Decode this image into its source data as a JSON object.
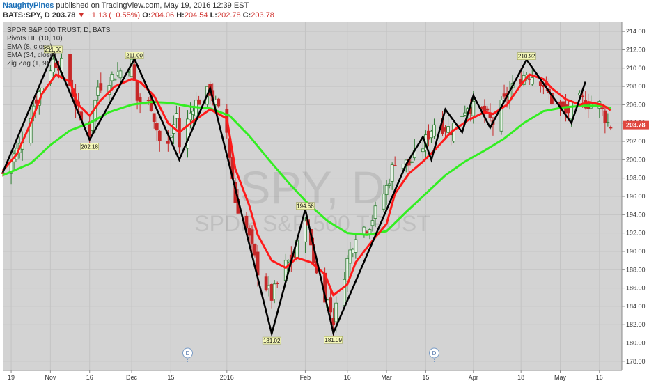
{
  "header": {
    "author": "NaughtyPines",
    "published": "published on TradingView.com, May 19, 2016 12:39 EST",
    "symbol": "BATS:SPY, D",
    "last": "203.78",
    "change": "−1.13 (−0.55%)",
    "o_label": "O:",
    "o": "204.06",
    "h_label": "H:",
    "h": "204.54",
    "l_label": "L:",
    "l": "202.78",
    "c_label": "C:",
    "c": "203.78"
  },
  "legend": [
    "SPDR S&P 500 TRUST, D, BATS",
    "Pivots HL (10, 10)",
    "EMA (8, close)",
    "EMA (34, close)",
    "Zig Zag (1, 9)"
  ],
  "watermark": {
    "line1": "SPY, D",
    "line2": "SPDR S&P 500 TRUST"
  },
  "colors": {
    "plot_bg": "#d3d3d3",
    "grid": "#c4c4c4",
    "up": "#2e7d32",
    "down": "#c62828",
    "ema_fast": "#ff1a1a",
    "ema_slow": "#33ee22",
    "zigzag": "#000000",
    "price_tag": "#e0473f",
    "pivot_label_bg": "#f4f7b8"
  },
  "events": [
    {
      "date": "2015-12-21",
      "label": "D"
    },
    {
      "date": "2016-03-18",
      "label": "D"
    }
  ],
  "chart_data": {
    "type": "candlestick",
    "title": "SPDR S&P 500 TRUST, D, BATS",
    "xlabel": "",
    "ylabel": "",
    "x_range": [
      "2015-10-16",
      "2016-05-24"
    ],
    "ylim": [
      177,
      215
    ],
    "y_ticks": [
      178,
      180,
      182,
      184,
      186,
      188,
      190,
      192,
      194,
      196,
      198,
      200,
      202,
      204,
      206,
      208,
      210,
      212,
      214
    ],
    "y_tick_labels": [
      "178.00",
      "180.00",
      "182.00",
      "184.00",
      "186.00",
      "188.00",
      "190.00",
      "192.00",
      "194.00",
      "196.00",
      "198.00",
      "200.00",
      "202.00",
      "204.00",
      "206.00",
      "208.00",
      "210.00",
      "212.00",
      "214.00"
    ],
    "x_ticks": [
      {
        "date": "2015-10-19",
        "label": "19"
      },
      {
        "date": "2015-11-02",
        "label": "Nov"
      },
      {
        "date": "2015-11-16",
        "label": "16"
      },
      {
        "date": "2015-12-01",
        "label": "Dec"
      },
      {
        "date": "2015-12-15",
        "label": "15"
      },
      {
        "date": "2016-01-04",
        "label": "2016"
      },
      {
        "date": "2016-02-01",
        "label": "Feb"
      },
      {
        "date": "2016-02-16",
        "label": "16"
      },
      {
        "date": "2016-03-01",
        "label": "Mar"
      },
      {
        "date": "2016-03-15",
        "label": "15"
      },
      {
        "date": "2016-04-01",
        "label": "Apr"
      },
      {
        "date": "2016-04-18",
        "label": "18"
      },
      {
        "date": "2016-05-02",
        "label": "May"
      },
      {
        "date": "2016-05-16",
        "label": "16"
      }
    ],
    "last_price": {
      "value": 203.78,
      "label": "203.78"
    },
    "zigzag": [
      {
        "date": "2015-10-16",
        "value": 198.6
      },
      {
        "date": "2015-11-03",
        "value": 211.66
      },
      {
        "date": "2015-11-16",
        "value": 202.18
      },
      {
        "date": "2015-12-02",
        "value": 211.0
      },
      {
        "date": "2015-12-18",
        "value": 200.0
      },
      {
        "date": "2015-12-29",
        "value": 207.8
      },
      {
        "date": "2016-01-20",
        "value": 181.02
      },
      {
        "date": "2016-02-01",
        "value": 194.58
      },
      {
        "date": "2016-02-11",
        "value": 181.09
      },
      {
        "date": "2016-03-08",
        "value": 199.5
      },
      {
        "date": "2016-03-14",
        "value": 202.5
      },
      {
        "date": "2016-03-17",
        "value": 200.0
      },
      {
        "date": "2016-03-22",
        "value": 205.5
      },
      {
        "date": "2016-03-28",
        "value": 203.0
      },
      {
        "date": "2016-04-01",
        "value": 207.0
      },
      {
        "date": "2016-04-07",
        "value": 203.5
      },
      {
        "date": "2016-04-20",
        "value": 210.92
      },
      {
        "date": "2016-05-06",
        "value": 204.0
      },
      {
        "date": "2016-05-11",
        "value": 208.5
      }
    ],
    "pivot_labels": [
      {
        "date": "2015-11-03",
        "value": 211.66,
        "label": "211.66",
        "position": "above"
      },
      {
        "date": "2015-11-16",
        "value": 202.18,
        "label": "202.18",
        "position": "below"
      },
      {
        "date": "2015-12-02",
        "value": 211.0,
        "label": "211.00",
        "position": "above"
      },
      {
        "date": "2016-01-20",
        "value": 181.02,
        "label": "181.02",
        "position": "below"
      },
      {
        "date": "2016-02-01",
        "value": 194.58,
        "label": "194.58",
        "position": "above"
      },
      {
        "date": "2016-02-11",
        "value": 181.09,
        "label": "181.09",
        "position": "below"
      },
      {
        "date": "2016-04-20",
        "value": 210.92,
        "label": "210.92",
        "position": "above"
      }
    ],
    "ema_fast_series": {
      "name": "EMA (8, close)",
      "points": [
        [
          "2015-10-16",
          198.8
        ],
        [
          "2015-10-21",
          200.6
        ],
        [
          "2015-10-26",
          204.0
        ],
        [
          "2015-10-30",
          207.2
        ],
        [
          "2015-11-04",
          209.3
        ],
        [
          "2015-11-09",
          208.5
        ],
        [
          "2015-11-12",
          206.0
        ],
        [
          "2015-11-16",
          204.8
        ],
        [
          "2015-11-20",
          206.5
        ],
        [
          "2015-11-25",
          208.0
        ],
        [
          "2015-12-01",
          208.8
        ],
        [
          "2015-12-04",
          208.5
        ],
        [
          "2015-12-09",
          207.0
        ],
        [
          "2015-12-14",
          204.0
        ],
        [
          "2015-12-18",
          203.0
        ],
        [
          "2015-12-23",
          204.2
        ],
        [
          "2015-12-29",
          205.5
        ],
        [
          "2016-01-04",
          204.5
        ],
        [
          "2016-01-07",
          199.0
        ],
        [
          "2016-01-12",
          195.0
        ],
        [
          "2016-01-15",
          191.8
        ],
        [
          "2016-01-20",
          189.0
        ],
        [
          "2016-01-25",
          188.2
        ],
        [
          "2016-01-29",
          189.3
        ],
        [
          "2016-02-03",
          188.8
        ],
        [
          "2016-02-08",
          187.5
        ],
        [
          "2016-02-11",
          185.2
        ],
        [
          "2016-02-16",
          186.4
        ],
        [
          "2016-02-19",
          188.8
        ],
        [
          "2016-02-24",
          190.8
        ],
        [
          "2016-03-01",
          193.0
        ],
        [
          "2016-03-04",
          196.3
        ],
        [
          "2016-03-09",
          198.5
        ],
        [
          "2016-03-14",
          199.8
        ],
        [
          "2016-03-18",
          201.0
        ],
        [
          "2016-03-24",
          203.0
        ],
        [
          "2016-03-30",
          204.3
        ],
        [
          "2016-04-05",
          205.2
        ],
        [
          "2016-04-08",
          205.0
        ],
        [
          "2016-04-13",
          206.0
        ],
        [
          "2016-04-18",
          208.2
        ],
        [
          "2016-04-21",
          209.3
        ],
        [
          "2016-04-26",
          208.8
        ],
        [
          "2016-04-29",
          207.8
        ],
        [
          "2016-05-04",
          206.6
        ],
        [
          "2016-05-09",
          206.0
        ],
        [
          "2016-05-12",
          206.3
        ],
        [
          "2016-05-17",
          206.0
        ],
        [
          "2016-05-20",
          205.4
        ]
      ]
    },
    "ema_slow_series": {
      "name": "EMA (34, close)",
      "points": [
        [
          "2015-10-16",
          198.3
        ],
        [
          "2015-10-26",
          199.6
        ],
        [
          "2015-11-02",
          201.6
        ],
        [
          "2015-11-09",
          203.2
        ],
        [
          "2015-11-16",
          204.0
        ],
        [
          "2015-11-23",
          205.2
        ],
        [
          "2015-12-01",
          206.0
        ],
        [
          "2015-12-08",
          206.3
        ],
        [
          "2015-12-15",
          206.2
        ],
        [
          "2015-12-22",
          205.8
        ],
        [
          "2015-12-29",
          205.6
        ],
        [
          "2016-01-05",
          204.8
        ],
        [
          "2016-01-12",
          202.6
        ],
        [
          "2016-01-19",
          200.0
        ],
        [
          "2016-01-26",
          197.5
        ],
        [
          "2016-02-02",
          195.2
        ],
        [
          "2016-02-09",
          193.3
        ],
        [
          "2016-02-16",
          192.0
        ],
        [
          "2016-02-23",
          191.8
        ],
        [
          "2016-03-01",
          192.2
        ],
        [
          "2016-03-08",
          194.3
        ],
        [
          "2016-03-15",
          196.3
        ],
        [
          "2016-03-22",
          198.3
        ],
        [
          "2016-03-29",
          199.8
        ],
        [
          "2016-04-05",
          201.0
        ],
        [
          "2016-04-12",
          202.3
        ],
        [
          "2016-04-19",
          204.0
        ],
        [
          "2016-04-26",
          205.3
        ],
        [
          "2016-05-03",
          205.7
        ],
        [
          "2016-05-10",
          205.9
        ],
        [
          "2016-05-17",
          205.9
        ],
        [
          "2016-05-20",
          205.6
        ]
      ]
    },
    "ohlc_anchors": [
      [
        "2015-10-16",
        198.5
      ],
      [
        "2015-10-22",
        201.5
      ],
      [
        "2015-10-27",
        206.0
      ],
      [
        "2015-11-03",
        210.8
      ],
      [
        "2015-11-06",
        210.3
      ],
      [
        "2015-11-09",
        208.2
      ],
      [
        "2015-11-13",
        204.2
      ],
      [
        "2015-11-16",
        203.0
      ],
      [
        "2015-11-19",
        208.0
      ],
      [
        "2015-11-25",
        209.3
      ],
      [
        "2015-12-01",
        210.5
      ],
      [
        "2015-12-03",
        206.5
      ],
      [
        "2015-12-08",
        206.0
      ],
      [
        "2015-12-11",
        202.0
      ],
      [
        "2015-12-14",
        201.5
      ],
      [
        "2015-12-17",
        205.0
      ],
      [
        "2015-12-18",
        201.5
      ],
      [
        "2015-12-23",
        206.0
      ],
      [
        "2015-12-29",
        207.5
      ],
      [
        "2016-01-04",
        203.0
      ],
      [
        "2016-01-07",
        195.5
      ],
      [
        "2016-01-11",
        192.5
      ],
      [
        "2016-01-15",
        188.0
      ],
      [
        "2016-01-20",
        185.0
      ],
      [
        "2016-01-25",
        188.5
      ],
      [
        "2016-01-28",
        189.5
      ],
      [
        "2016-02-01",
        194.0
      ],
      [
        "2016-02-05",
        187.5
      ],
      [
        "2016-02-09",
        184.5
      ],
      [
        "2016-02-11",
        182.5
      ],
      [
        "2016-02-16",
        189.0
      ],
      [
        "2016-02-19",
        192.0
      ],
      [
        "2016-02-24",
        193.0
      ],
      [
        "2016-03-01",
        197.0
      ],
      [
        "2016-03-04",
        200.0
      ],
      [
        "2016-03-09",
        199.5
      ],
      [
        "2016-03-14",
        201.5
      ],
      [
        "2016-03-18",
        204.0
      ],
      [
        "2016-03-24",
        203.3
      ],
      [
        "2016-03-30",
        206.0
      ],
      [
        "2016-04-05",
        205.0
      ],
      [
        "2016-04-08",
        204.0
      ],
      [
        "2016-04-13",
        207.0
      ],
      [
        "2016-04-18",
        209.0
      ],
      [
        "2016-04-20",
        209.5
      ],
      [
        "2016-04-25",
        208.8
      ],
      [
        "2016-04-29",
        206.5
      ],
      [
        "2016-05-04",
        205.0
      ],
      [
        "2016-05-09",
        206.5
      ],
      [
        "2016-05-12",
        206.2
      ],
      [
        "2016-05-16",
        206.0
      ],
      [
        "2016-05-19",
        204.0
      ],
      [
        "2016-05-20",
        203.78
      ]
    ]
  }
}
